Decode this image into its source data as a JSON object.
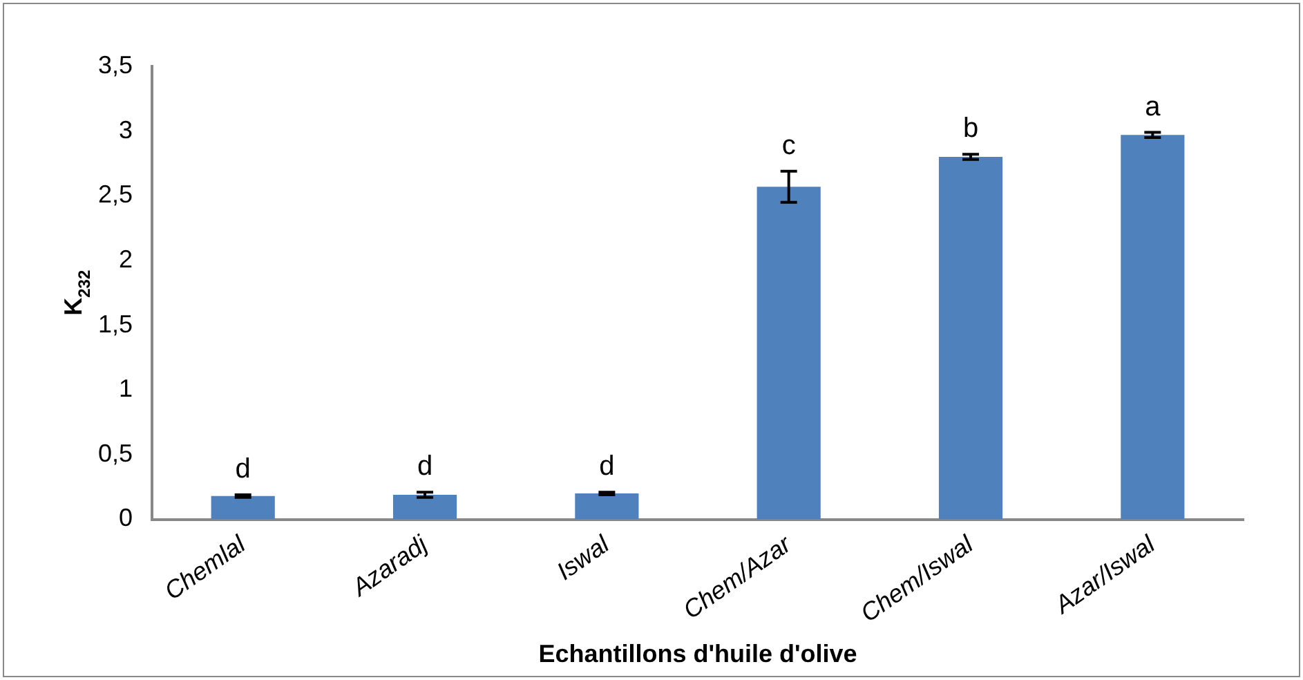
{
  "chart_data": {
    "type": "bar",
    "xlabel": "Echantillons d'huile d'olive",
    "ylabel": "K$_{232}$",
    "categories": [
      "Chemlal",
      "Azaradj",
      "Iswal",
      "Chem/Azar",
      "Chem/Iswal",
      "Azar/Iswal"
    ],
    "values": [
      0.18,
      0.19,
      0.2,
      2.57,
      2.8,
      2.97
    ],
    "errors": [
      0.01,
      0.02,
      0.01,
      0.12,
      0.02,
      0.02
    ],
    "color": "#4f81bd",
    "ylim": [
      0,
      3.5
    ],
    "yticks": [
      0,
      {
        "value": 0.5,
        "label": "0,5"
      },
      1,
      {
        "value": 1.5,
        "label": "1,5"
      },
      2,
      {
        "value": 2.5,
        "label": "2,5"
      },
      3,
      {
        "value": 3.5,
        "label": "3,5"
      }
    ],
    "grid": false,
    "annotations": [
      {
        "text": "d",
        "x": "Chemlal",
        "y": 0.19
      },
      {
        "text": "d",
        "x": "Azaradj",
        "y": 0.21
      },
      {
        "text": "d",
        "x": "Iswal",
        "y": 0.21
      },
      {
        "text": "c",
        "x": "Chem/Azar",
        "y": 2.69
      },
      {
        "text": "b",
        "x": "Chem/Iswal",
        "y": 2.82
      },
      {
        "text": "a",
        "x": "Azar/Iswal",
        "y": 2.99
      }
    ]
  }
}
